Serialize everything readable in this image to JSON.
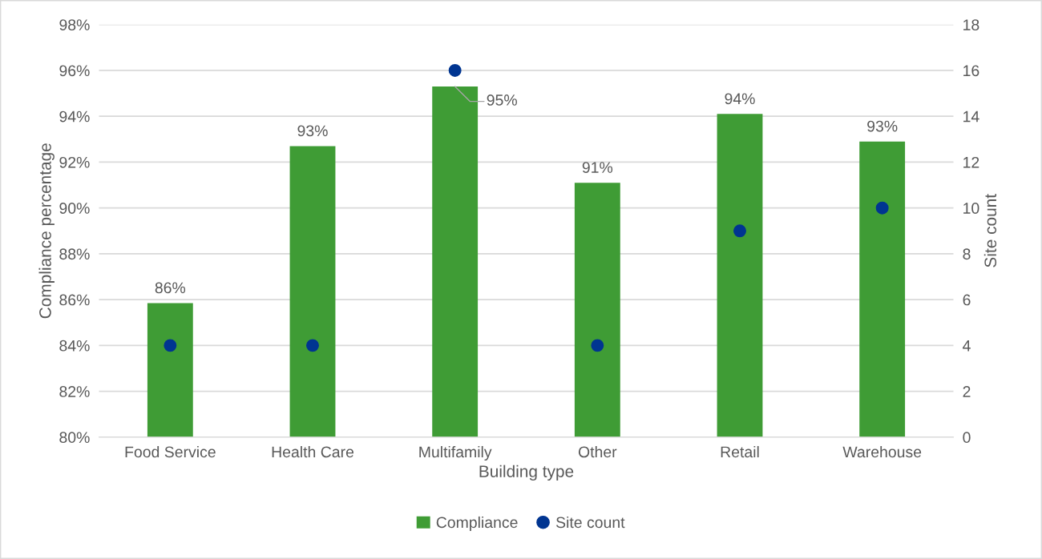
{
  "chart_data": {
    "type": "bar",
    "xlabel": "Building type",
    "ylabel": "Compliance percentage",
    "y2label": "Site count",
    "categories": [
      "Food Service",
      "Health Care",
      "Multifamily",
      "Other",
      "Retail",
      "Warehouse"
    ],
    "series": [
      {
        "name": "Compliance",
        "color": "#3f9c35",
        "values": [
          85.85,
          92.7,
          95.3,
          91.1,
          94.1,
          92.9
        ],
        "value_labels": [
          "86%",
          "93%",
          "95%",
          "91%",
          "94%",
          "93%"
        ]
      },
      {
        "name": "Site count",
        "type": "scatter",
        "axis": "y2",
        "color": "#003591",
        "x": [
          "Food Service",
          "Health Care",
          "Multifamily",
          "Other",
          "Retail",
          "Warehouse"
        ],
        "values": [
          4,
          4,
          16,
          4,
          9,
          10
        ]
      }
    ],
    "ylim": [
      80,
      98
    ],
    "yticks": [
      {
        "value": 80,
        "label": "80%"
      },
      {
        "value": 82,
        "label": "82%"
      },
      {
        "value": 84,
        "label": "84%"
      },
      {
        "value": 86,
        "label": "86%"
      },
      {
        "value": 88,
        "label": "88%"
      },
      {
        "value": 90,
        "label": "90%"
      },
      {
        "value": 92,
        "label": "92%"
      },
      {
        "value": 94,
        "label": "94%"
      },
      {
        "value": 96,
        "label": "96%"
      },
      {
        "value": 98,
        "label": "98%"
      }
    ],
    "y2lim": [
      0,
      18
    ],
    "y2ticks": [
      0,
      2,
      4,
      6,
      8,
      10,
      12,
      14,
      16,
      18
    ],
    "grid": "y",
    "legend": "bottom",
    "marker": "circle"
  }
}
